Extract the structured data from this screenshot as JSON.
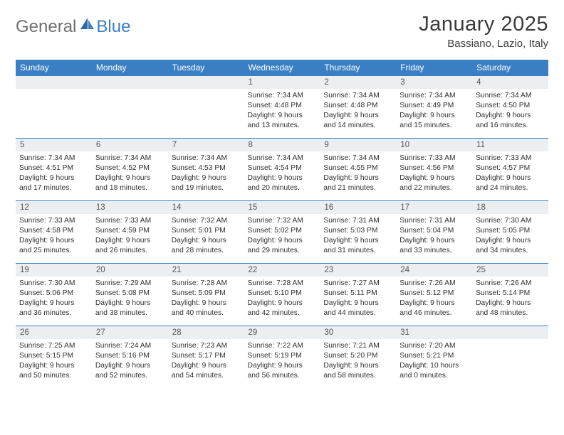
{
  "logo": {
    "part1": "General",
    "part2": "Blue"
  },
  "title": "January 2025",
  "location": "Bassiano, Lazio, Italy",
  "brand_color": "#3a7fc4",
  "header_bg": "#3a7fc4",
  "header_text": "#ffffff",
  "daynum_bg": "#eceff1",
  "body_bg": "#ffffff",
  "text_color": "#303030",
  "days": [
    "Sunday",
    "Monday",
    "Tuesday",
    "Wednesday",
    "Thursday",
    "Friday",
    "Saturday"
  ],
  "weeks": [
    [
      {
        "n": "",
        "sr": "",
        "ss": "",
        "dl": ""
      },
      {
        "n": "",
        "sr": "",
        "ss": "",
        "dl": ""
      },
      {
        "n": "",
        "sr": "",
        "ss": "",
        "dl": ""
      },
      {
        "n": "1",
        "sr": "7:34 AM",
        "ss": "4:48 PM",
        "dl": "9 hours and 13 minutes."
      },
      {
        "n": "2",
        "sr": "7:34 AM",
        "ss": "4:48 PM",
        "dl": "9 hours and 14 minutes."
      },
      {
        "n": "3",
        "sr": "7:34 AM",
        "ss": "4:49 PM",
        "dl": "9 hours and 15 minutes."
      },
      {
        "n": "4",
        "sr": "7:34 AM",
        "ss": "4:50 PM",
        "dl": "9 hours and 16 minutes."
      }
    ],
    [
      {
        "n": "5",
        "sr": "7:34 AM",
        "ss": "4:51 PM",
        "dl": "9 hours and 17 minutes."
      },
      {
        "n": "6",
        "sr": "7:34 AM",
        "ss": "4:52 PM",
        "dl": "9 hours and 18 minutes."
      },
      {
        "n": "7",
        "sr": "7:34 AM",
        "ss": "4:53 PM",
        "dl": "9 hours and 19 minutes."
      },
      {
        "n": "8",
        "sr": "7:34 AM",
        "ss": "4:54 PM",
        "dl": "9 hours and 20 minutes."
      },
      {
        "n": "9",
        "sr": "7:34 AM",
        "ss": "4:55 PM",
        "dl": "9 hours and 21 minutes."
      },
      {
        "n": "10",
        "sr": "7:33 AM",
        "ss": "4:56 PM",
        "dl": "9 hours and 22 minutes."
      },
      {
        "n": "11",
        "sr": "7:33 AM",
        "ss": "4:57 PM",
        "dl": "9 hours and 24 minutes."
      }
    ],
    [
      {
        "n": "12",
        "sr": "7:33 AM",
        "ss": "4:58 PM",
        "dl": "9 hours and 25 minutes."
      },
      {
        "n": "13",
        "sr": "7:33 AM",
        "ss": "4:59 PM",
        "dl": "9 hours and 26 minutes."
      },
      {
        "n": "14",
        "sr": "7:32 AM",
        "ss": "5:01 PM",
        "dl": "9 hours and 28 minutes."
      },
      {
        "n": "15",
        "sr": "7:32 AM",
        "ss": "5:02 PM",
        "dl": "9 hours and 29 minutes."
      },
      {
        "n": "16",
        "sr": "7:31 AM",
        "ss": "5:03 PM",
        "dl": "9 hours and 31 minutes."
      },
      {
        "n": "17",
        "sr": "7:31 AM",
        "ss": "5:04 PM",
        "dl": "9 hours and 33 minutes."
      },
      {
        "n": "18",
        "sr": "7:30 AM",
        "ss": "5:05 PM",
        "dl": "9 hours and 34 minutes."
      }
    ],
    [
      {
        "n": "19",
        "sr": "7:30 AM",
        "ss": "5:06 PM",
        "dl": "9 hours and 36 minutes."
      },
      {
        "n": "20",
        "sr": "7:29 AM",
        "ss": "5:08 PM",
        "dl": "9 hours and 38 minutes."
      },
      {
        "n": "21",
        "sr": "7:28 AM",
        "ss": "5:09 PM",
        "dl": "9 hours and 40 minutes."
      },
      {
        "n": "22",
        "sr": "7:28 AM",
        "ss": "5:10 PM",
        "dl": "9 hours and 42 minutes."
      },
      {
        "n": "23",
        "sr": "7:27 AM",
        "ss": "5:11 PM",
        "dl": "9 hours and 44 minutes."
      },
      {
        "n": "24",
        "sr": "7:26 AM",
        "ss": "5:12 PM",
        "dl": "9 hours and 46 minutes."
      },
      {
        "n": "25",
        "sr": "7:26 AM",
        "ss": "5:14 PM",
        "dl": "9 hours and 48 minutes."
      }
    ],
    [
      {
        "n": "26",
        "sr": "7:25 AM",
        "ss": "5:15 PM",
        "dl": "9 hours and 50 minutes."
      },
      {
        "n": "27",
        "sr": "7:24 AM",
        "ss": "5:16 PM",
        "dl": "9 hours and 52 minutes."
      },
      {
        "n": "28",
        "sr": "7:23 AM",
        "ss": "5:17 PM",
        "dl": "9 hours and 54 minutes."
      },
      {
        "n": "29",
        "sr": "7:22 AM",
        "ss": "5:19 PM",
        "dl": "9 hours and 56 minutes."
      },
      {
        "n": "30",
        "sr": "7:21 AM",
        "ss": "5:20 PM",
        "dl": "9 hours and 58 minutes."
      },
      {
        "n": "31",
        "sr": "7:20 AM",
        "ss": "5:21 PM",
        "dl": "10 hours and 0 minutes."
      },
      {
        "n": "",
        "sr": "",
        "ss": "",
        "dl": ""
      }
    ]
  ],
  "labels": {
    "sunrise": "Sunrise:",
    "sunset": "Sunset:",
    "daylight": "Daylight:"
  }
}
